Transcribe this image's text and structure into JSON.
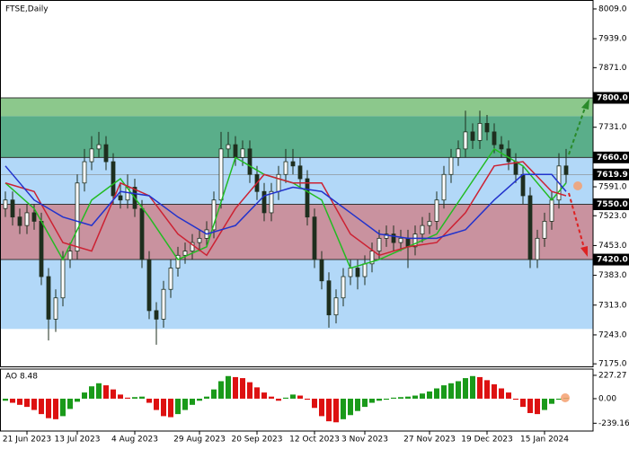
{
  "chart_data": [
    {
      "type": "candlestick",
      "title": "FTSE,Daily",
      "open": [
        7540,
        7560,
        7520,
        7500,
        7530,
        7510,
        7380,
        7280,
        7330,
        7420,
        7440,
        7600,
        7650,
        7680,
        7690,
        7650,
        7570,
        7560,
        7590,
        7540,
        7420,
        7300,
        7280,
        7350,
        7400,
        7430,
        7440,
        7460,
        7470,
        7490,
        7560,
        7680,
        7690,
        7660,
        7680,
        7620,
        7580,
        7530,
        7580,
        7620,
        7650,
        7640,
        7610,
        7520,
        7420,
        7370,
        7290,
        7330,
        7380,
        7400,
        7380,
        7410,
        7440,
        7470,
        7480,
        7460,
        7470,
        7450,
        7480,
        7500,
        7510,
        7560,
        7620,
        7660,
        7680,
        7720,
        7700,
        7740,
        7720,
        7690,
        7680,
        7650,
        7620,
        7570,
        7420,
        7470,
        7510,
        7560,
        7640
      ],
      "high": [
        7580,
        7580,
        7540,
        7550,
        7550,
        7530,
        7400,
        7350,
        7440,
        7460,
        7620,
        7680,
        7710,
        7720,
        7710,
        7670,
        7600,
        7620,
        7610,
        7560,
        7440,
        7320,
        7370,
        7420,
        7450,
        7460,
        7480,
        7490,
        7510,
        7580,
        7720,
        7720,
        7710,
        7700,
        7700,
        7640,
        7600,
        7600,
        7640,
        7680,
        7680,
        7660,
        7630,
        7540,
        7440,
        7390,
        7350,
        7400,
        7420,
        7420,
        7430,
        7460,
        7490,
        7500,
        7500,
        7490,
        7490,
        7500,
        7520,
        7530,
        7580,
        7640,
        7680,
        7700,
        7770,
        7740,
        7770,
        7760,
        7740,
        7710,
        7700,
        7670,
        7640,
        7590,
        7490,
        7530,
        7580,
        7670,
        7680
      ],
      "low": [
        7520,
        7500,
        7480,
        7480,
        7490,
        7360,
        7230,
        7250,
        7310,
        7400,
        7420,
        7580,
        7630,
        7660,
        7630,
        7550,
        7540,
        7540,
        7520,
        7400,
        7280,
        7220,
        7260,
        7330,
        7380,
        7410,
        7420,
        7440,
        7450,
        7470,
        7540,
        7660,
        7640,
        7640,
        7600,
        7560,
        7510,
        7510,
        7560,
        7600,
        7620,
        7590,
        7500,
        7400,
        7350,
        7260,
        7270,
        7310,
        7360,
        7350,
        7360,
        7390,
        7420,
        7450,
        7440,
        7440,
        7400,
        7430,
        7460,
        7480,
        7490,
        7540,
        7600,
        7640,
        7660,
        7680,
        7680,
        7700,
        7670,
        7660,
        7630,
        7600,
        7550,
        7400,
        7400,
        7450,
        7490,
        7540,
        7600
      ],
      "close": [
        7560,
        7520,
        7500,
        7530,
        7510,
        7380,
        7280,
        7330,
        7420,
        7440,
        7600,
        7650,
        7680,
        7690,
        7650,
        7570,
        7560,
        7590,
        7540,
        7420,
        7300,
        7280,
        7350,
        7400,
        7430,
        7440,
        7460,
        7470,
        7490,
        7560,
        7680,
        7690,
        7660,
        7680,
        7620,
        7580,
        7530,
        7580,
        7620,
        7650,
        7640,
        7610,
        7520,
        7420,
        7370,
        7290,
        7330,
        7380,
        7400,
        7380,
        7410,
        7440,
        7470,
        7480,
        7460,
        7470,
        7450,
        7480,
        7500,
        7510,
        7560,
        7620,
        7660,
        7680,
        7720,
        7700,
        7740,
        7720,
        7690,
        7680,
        7650,
        7620,
        7570,
        7420,
        7470,
        7510,
        7560,
        7640,
        7619.9
      ],
      "candle_color": "#1e2e1e",
      "ma_x": [
        0,
        4,
        8,
        12,
        16,
        20,
        24,
        28,
        32,
        36,
        40,
        44,
        48,
        52,
        56,
        60,
        64,
        68,
        72,
        76,
        78
      ],
      "series": [
        {
          "color": "#22bb22",
          "values": [
            7600,
            7540,
            7420,
            7560,
            7610,
            7520,
            7420,
            7450,
            7660,
            7620,
            7600,
            7560,
            7400,
            7420,
            7450,
            7480,
            7580,
            7680,
            7640,
            7560,
            7600
          ]
        },
        {
          "color": "#cc2233",
          "values": [
            7600,
            7580,
            7460,
            7440,
            7600,
            7570,
            7480,
            7430,
            7540,
            7620,
            7600,
            7600,
            7480,
            7430,
            7450,
            7460,
            7530,
            7640,
            7650,
            7580,
            7570
          ]
        },
        {
          "color": "#2233cc",
          "values": [
            7640,
            7560,
            7520,
            7500,
            7580,
            7570,
            7520,
            7480,
            7500,
            7570,
            7590,
            7580,
            7530,
            7480,
            7470,
            7470,
            7490,
            7560,
            7620,
            7620,
            7580
          ]
        }
      ],
      "zones": [
        {
          "from": 7757,
          "to": 7800,
          "color": "#8cc88c"
        },
        {
          "from": 7660,
          "to": 7757,
          "color": "#5aae8a"
        },
        {
          "from": 7550,
          "to": 7660,
          "color": "#b2d8f8"
        },
        {
          "from": 7420,
          "to": 7550,
          "color": "#c9929f"
        },
        {
          "from": 7257,
          "to": 7420,
          "color": "#b2d8f8"
        }
      ],
      "levels": [
        {
          "value": 7800,
          "label": "7800.0"
        },
        {
          "value": 7660,
          "label": "7660.0"
        },
        {
          "value": 7550,
          "label": "7550.0"
        },
        {
          "value": 7420,
          "label": "7420.0"
        }
      ],
      "current": {
        "value": 7619.9,
        "label": "7619.9"
      },
      "xlim": [
        -0.75,
        81.75
      ],
      "ylim": [
        7169,
        8030
      ],
      "yticks": [
        {
          "value": 8009,
          "label": "8009.0"
        },
        {
          "value": 7939,
          "label": "7939.0"
        },
        {
          "value": 7871,
          "label": "7871.0"
        },
        {
          "value": 7731,
          "label": "7731.0"
        },
        {
          "value": 7591,
          "label": "7591.0"
        },
        {
          "value": 7523,
          "label": "7523.0"
        },
        {
          "value": 7453,
          "label": "7453.0"
        },
        {
          "value": 7383,
          "label": "7383.0"
        },
        {
          "value": 7313,
          "label": "7313.0"
        },
        {
          "value": 7243,
          "label": "7243.0"
        },
        {
          "value": 7175,
          "label": "7175.0"
        }
      ],
      "xticks": [
        {
          "value": 3,
          "label": "21 Jun 2023"
        },
        {
          "value": 10,
          "label": "13 Jul 2023"
        },
        {
          "value": 18,
          "label": "4 Aug 2023"
        },
        {
          "value": 27,
          "label": "29 Aug 2023"
        },
        {
          "value": 35,
          "label": "20 Sep 2023"
        },
        {
          "value": 43,
          "label": "12 Oct 2023"
        },
        {
          "value": 50,
          "label": "3 Nov 2023"
        },
        {
          "value": 59,
          "label": "27 Nov 2023"
        },
        {
          "value": 67,
          "label": "19 Dec 2023"
        },
        {
          "value": 75,
          "label": "15 Jan 2024"
        }
      ]
    },
    {
      "type": "histogram-oscillator",
      "title": "AO 8.48",
      "values": [
        -20,
        -40,
        -60,
        -80,
        -110,
        -150,
        -190,
        -200,
        -170,
        -100,
        -30,
        60,
        120,
        150,
        130,
        90,
        40,
        10,
        15,
        20,
        -40,
        -110,
        -170,
        -180,
        -150,
        -110,
        -60,
        -20,
        20,
        90,
        170,
        220,
        210,
        200,
        160,
        110,
        60,
        20,
        -20,
        10,
        40,
        30,
        -10,
        -90,
        -170,
        -220,
        -230,
        -200,
        -160,
        -120,
        -80,
        -40,
        -20,
        -10,
        10,
        15,
        20,
        30,
        50,
        70,
        100,
        130,
        150,
        170,
        200,
        220,
        210,
        180,
        140,
        100,
        60,
        -10,
        -80,
        -140,
        -150,
        -110,
        -50,
        -10,
        8.48
      ],
      "up_color": "#1a9a1a",
      "down_color": "#dd1111",
      "ylim": [
        -315,
        288
      ],
      "yticks": [
        227.27,
        {
          "value": 0,
          "label": "0.00"
        },
        -239.16
      ]
    }
  ]
}
